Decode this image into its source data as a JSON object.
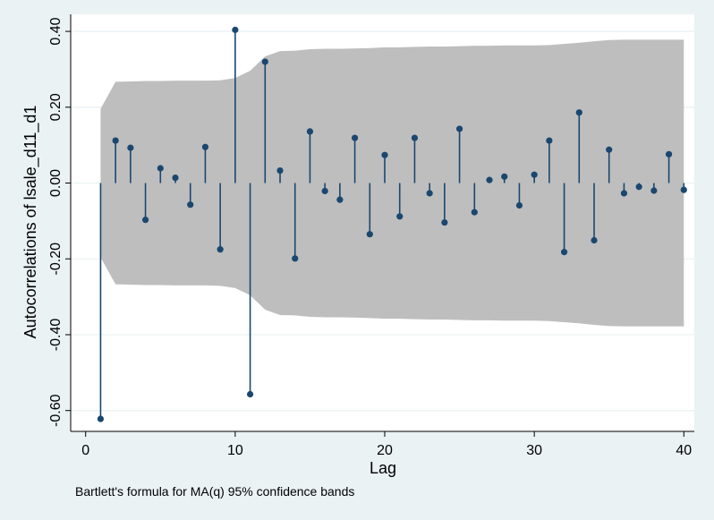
{
  "chart_data": {
    "type": "stem",
    "title": "",
    "xlabel": "Lag",
    "ylabel": "Autocorrelations of lsale_d11_d1",
    "note": "Bartlett's formula for MA(q) 95% confidence bands",
    "xlim": [
      -1,
      40.7
    ],
    "ylim": [
      -0.655,
      0.445
    ],
    "x_ticks": [
      0,
      10,
      20,
      30,
      40
    ],
    "x_tick_labels": [
      "0",
      "10",
      "20",
      "30",
      "40"
    ],
    "y_ticks": [
      -0.6,
      -0.4,
      -0.2,
      0.0,
      0.2,
      0.4
    ],
    "y_tick_labels": [
      "-0.60",
      "-0.40",
      "-0.20",
      "0.00",
      "0.20",
      "0.40"
    ],
    "grid": true,
    "lags": [
      1,
      2,
      3,
      4,
      5,
      6,
      7,
      8,
      9,
      10,
      11,
      12,
      13,
      14,
      15,
      16,
      17,
      18,
      19,
      20,
      21,
      22,
      23,
      24,
      25,
      26,
      27,
      28,
      29,
      30,
      31,
      32,
      33,
      34,
      35,
      36,
      37,
      38,
      39,
      40
    ],
    "values": [
      -0.622,
      0.112,
      0.093,
      -0.097,
      0.039,
      0.014,
      -0.057,
      0.095,
      -0.175,
      0.404,
      -0.557,
      0.32,
      0.033,
      -0.199,
      0.136,
      -0.021,
      -0.044,
      0.119,
      -0.135,
      0.074,
      -0.088,
      0.119,
      -0.027,
      -0.104,
      0.143,
      -0.077,
      0.008,
      0.017,
      -0.059,
      0.022,
      0.112,
      -0.182,
      0.186,
      -0.151,
      0.088,
      -0.027,
      -0.01,
      -0.02,
      0.076,
      -0.018
    ],
    "confidence_band_upper": [
      0.196,
      0.267,
      0.268,
      0.269,
      0.269,
      0.27,
      0.27,
      0.27,
      0.271,
      0.277,
      0.296,
      0.334,
      0.348,
      0.349,
      0.353,
      0.354,
      0.354,
      0.355,
      0.356,
      0.358,
      0.358,
      0.359,
      0.36,
      0.36,
      0.361,
      0.362,
      0.362,
      0.363,
      0.363,
      0.363,
      0.364,
      0.367,
      0.37,
      0.374,
      0.377,
      0.378,
      0.378,
      0.378,
      0.378,
      0.378
    ],
    "colors": {
      "band": "#bebebe",
      "stem": "#1a476f",
      "plot_background": "#ffffff",
      "page_background": "#eaf2f3",
      "grid": "#eaf2f3"
    }
  }
}
